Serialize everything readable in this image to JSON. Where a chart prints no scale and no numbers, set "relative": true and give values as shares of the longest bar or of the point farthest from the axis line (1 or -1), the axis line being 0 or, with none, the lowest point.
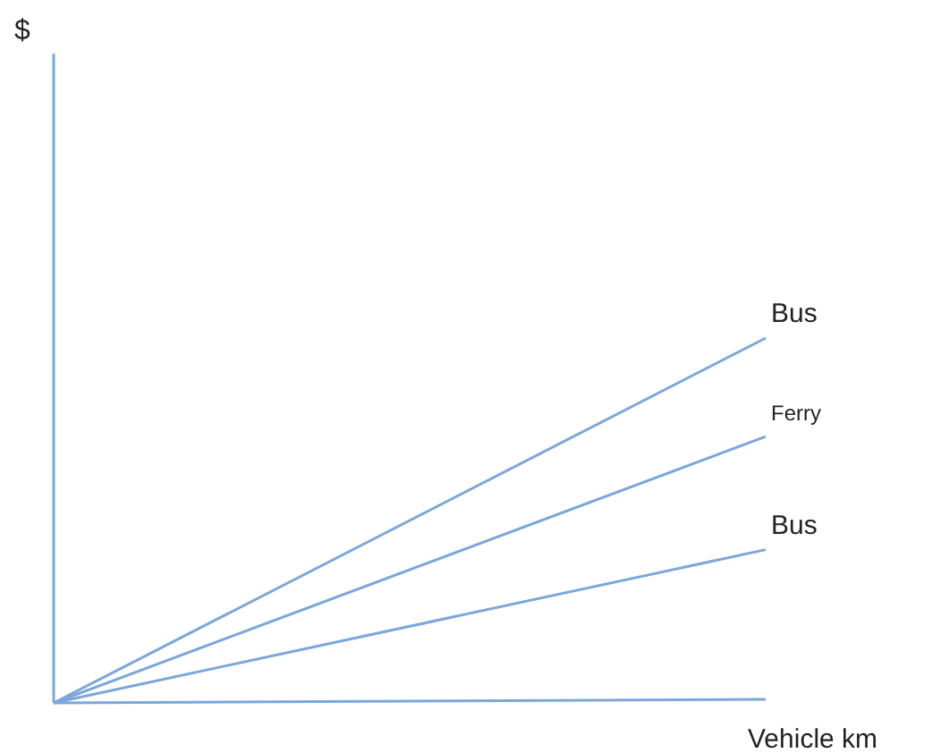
{
  "chart_data": {
    "type": "line",
    "relative": true,
    "xlabel": "Vehicle km",
    "annotations": [
      "$"
    ],
    "categories": [
      null,
      null
    ],
    "marker": "none",
    "grid": false,
    "legend": false,
    "series": [
      {
        "name": "Bus",
        "color": "#7ba7d9",
        "values": [
          0,
          1
        ]
      },
      {
        "name": "Ferry",
        "color": "#7ba7d9",
        "values": [
          0,
          0.73
        ]
      },
      {
        "name": "Bus",
        "color": "#7ba7d9",
        "values": [
          0,
          0.42
        ]
      }
    ]
  }
}
